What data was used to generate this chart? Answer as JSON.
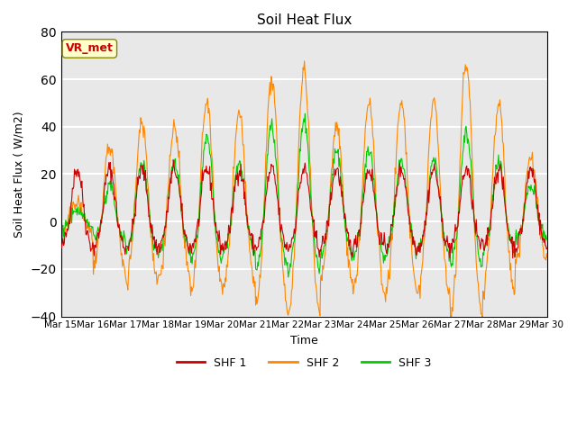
{
  "title": "Soil Heat Flux",
  "ylabel": "Soil Heat Flux ( W/m2)",
  "xlabel": "Time",
  "ylim": [
    -40,
    80
  ],
  "yticks": [
    -40,
    -20,
    0,
    20,
    40,
    60,
    80
  ],
  "x_labels": [
    "Mar 15",
    "Mar 16",
    "Mar 17",
    "Mar 18",
    "Mar 19",
    "Mar 20",
    "Mar 21",
    "Mar 22",
    "Mar 23",
    "Mar 24",
    "Mar 25",
    "Mar 26",
    "Mar 27",
    "Mar 28",
    "Mar 29",
    "Mar 30"
  ],
  "color_shf1": "#cc0000",
  "color_shf2": "#ff8800",
  "color_shf3": "#00cc00",
  "legend_labels": [
    "SHF 1",
    "SHF 2",
    "SHF 3"
  ],
  "bg_color": "#e8e8e8",
  "grid_color": "#ffffff",
  "annotation_text": "VR_met",
  "annotation_color": "#cc0000",
  "annotation_bg": "#ffffcc",
  "annotation_border": "#888800"
}
